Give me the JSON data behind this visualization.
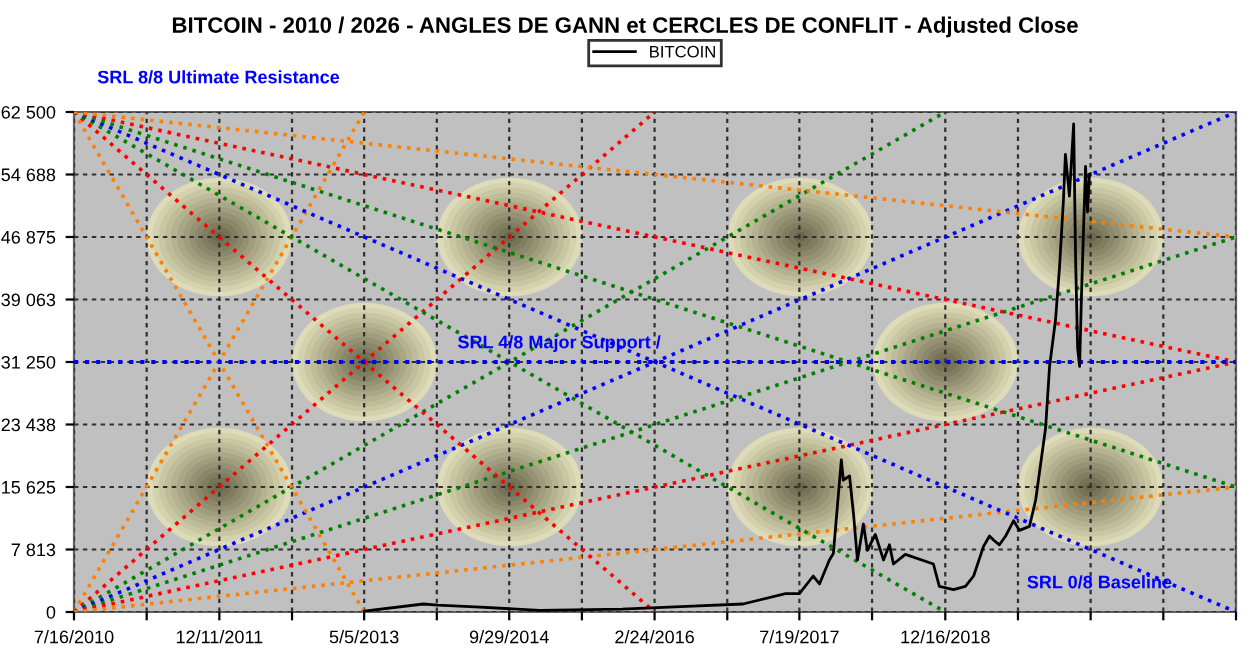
{
  "chart_data": {
    "type": "line",
    "title": "BITCOIN - 2010 / 2026 - ANGLES DE GANN et CERCLES DE CONFLIT - Adjusted Close",
    "xlim": [
      "2010-07-16",
      "2021-10-07"
    ],
    "xticks": [
      {
        "value": "2010-07-16",
        "label": "7/16/2010"
      },
      {
        "value": "2011-03-29T12:00",
        "label": null
      },
      {
        "value": "2011-12-11",
        "label": "12/11/2011"
      },
      {
        "value": "2012-08-23T12:00",
        "label": null
      },
      {
        "value": "2013-05-05",
        "label": "5/5/2013"
      },
      {
        "value": "2014-01-16T12:00",
        "label": null
      },
      {
        "value": "2014-09-29",
        "label": "9/29/2014"
      },
      {
        "value": "2015-06-12T12:00",
        "label": null
      },
      {
        "value": "2016-02-24",
        "label": "2/24/2016"
      },
      {
        "value": "2016-11-06T12:00",
        "label": null
      },
      {
        "value": "2017-07-19",
        "label": "7/19/2017"
      },
      {
        "value": "2018-04-01T12:00",
        "label": null
      },
      {
        "value": "2018-12-16",
        "label": "12/16/2018"
      },
      {
        "value": "2019-08-29T12:00",
        "label": null
      },
      {
        "value": "2020-05-12",
        "label": null
      },
      {
        "value": "2021-01-23T12:00",
        "label": null
      },
      {
        "value": "2021-10-07",
        "label": null
      }
    ],
    "ylim": [
      0,
      62500
    ],
    "yticks": [
      0,
      {
        "value": 7812.5,
        "label": "7 813"
      },
      {
        "value": 15625,
        "label": "15 625"
      },
      {
        "value": 23437.5,
        "label": "23 438"
      },
      {
        "value": 31250,
        "label": "31 250"
      },
      {
        "value": 39062.5,
        "label": "39 063"
      },
      {
        "value": 46875,
        "label": "46 875"
      },
      {
        "value": 54687.5,
        "label": "54 688"
      },
      {
        "value": 62500,
        "label": "62 500"
      }
    ],
    "grid": true,
    "legend": "top",
    "annotations": [
      "SRL 8/8 Ultimate Resistance",
      "SRL 0/8 Baseline"
    ],
    "ref_lines": [
      {
        "axis": "y",
        "value": 31250,
        "label": "SRL 4/8 Major Support /",
        "color": "#0000ff",
        "line_style": "dotted"
      }
    ],
    "series": [
      {
        "name": "BITCOIN",
        "color": "#000000",
        "line_style": "solid",
        "x": [
          "2013-05-05",
          "2013-11-30",
          "2014-01-20",
          "2014-06-01",
          "2015-01-15",
          "2015-11-01",
          "2016-06-15",
          "2017-01-01",
          "2017-05-31",
          "2017-07-19",
          "2017-09-06",
          "2017-09-28",
          "2017-11-02",
          "2017-11-16",
          "2017-12-14",
          "2017-12-21",
          "2018-01-12",
          "2018-01-26",
          "2018-02-09",
          "2018-03-02",
          "2018-03-16",
          "2018-04-13",
          "2018-05-12",
          "2018-06-02",
          "2018-06-16",
          "2018-07-28",
          "2018-11-04",
          "2018-11-25",
          "2019-01-14",
          "2019-02-25",
          "2019-03-26",
          "2019-04-30",
          "2019-05-21",
          "2019-06-04",
          "2019-06-25",
          "2019-07-17",
          "2019-08-14",
          "2019-09-04",
          "2019-10-09",
          "2019-10-31",
          "2019-12-05",
          "2019-12-19",
          "2020-01-09",
          "2020-01-23",
          "2020-02-06",
          "2020-02-13",
          "2020-02-27",
          "2020-03-13",
          "2020-03-20",
          "2020-03-27",
          "2020-04-03",
          "2020-04-10",
          "2020-04-24",
          "2020-05-01",
          "2020-05-08"
        ],
        "values": [
          110,
          1000,
          850,
          650,
          200,
          350,
          700,
          1000,
          2300,
          2300,
          4500,
          3500,
          6500,
          7300,
          19000,
          16500,
          17000,
          12300,
          6500,
          11000,
          7700,
          9700,
          6500,
          8400,
          6000,
          7200,
          6000,
          3200,
          2800,
          3200,
          4500,
          8200,
          9500,
          9000,
          8400,
          9500,
          11400,
          10200,
          10700,
          14000,
          23000,
          30700,
          36500,
          43000,
          51500,
          57200,
          52000,
          61000,
          44000,
          33000,
          30700,
          40000,
          55700,
          50000,
          54700
        ]
      },
      {
        "color": "#ff8000",
        "line_style": "dotted",
        "x": [
          "2010-07-16",
          "2013-05-05"
        ],
        "values": [
          0,
          62500
        ]
      },
      {
        "color": "#ff0000",
        "line_style": "dotted",
        "x": [
          "2010-07-16",
          "2016-02-24"
        ],
        "values": [
          0,
          62500
        ]
      },
      {
        "color": "#008000",
        "line_style": "dotted",
        "x": [
          "2010-07-16",
          "2018-12-16"
        ],
        "values": [
          0,
          62500
        ]
      },
      {
        "color": "#0000ff",
        "line_style": "dotted",
        "x": [
          "2010-07-16",
          "2021-10-07"
        ],
        "values": [
          0,
          62500
        ]
      },
      {
        "color": "#008000",
        "line_style": "dotted",
        "x": [
          "2010-07-16",
          "2021-10-07"
        ],
        "values": [
          0,
          46875
        ]
      },
      {
        "color": "#ff0000",
        "line_style": "dotted",
        "x": [
          "2010-07-16",
          "2021-10-07"
        ],
        "values": [
          0,
          31250
        ]
      },
      {
        "color": "#ff8000",
        "line_style": "dotted",
        "x": [
          "2010-07-16",
          "2021-10-07"
        ],
        "values": [
          0,
          15625
        ]
      },
      {
        "color": "#ff8000",
        "line_style": "dotted",
        "x": [
          "2010-07-16",
          "2013-05-05"
        ],
        "values": [
          62500,
          0
        ]
      },
      {
        "color": "#ff0000",
        "line_style": "dotted",
        "x": [
          "2010-07-16",
          "2016-02-24"
        ],
        "values": [
          62500,
          0
        ]
      },
      {
        "color": "#008000",
        "line_style": "dotted",
        "x": [
          "2010-07-16",
          "2018-12-16"
        ],
        "values": [
          62500,
          0
        ]
      },
      {
        "color": "#0000ff",
        "line_style": "dotted",
        "x": [
          "2010-07-16",
          "2021-10-07"
        ],
        "values": [
          62500,
          0
        ]
      },
      {
        "color": "#008000",
        "line_style": "dotted",
        "x": [
          "2010-07-16",
          "2021-10-07"
        ],
        "values": [
          62500,
          15625
        ]
      },
      {
        "color": "#ff0000",
        "line_style": "dotted",
        "x": [
          "2010-07-16",
          "2021-10-07"
        ],
        "values": [
          62500,
          31250
        ]
      },
      {
        "color": "#ff8000",
        "line_style": "dotted",
        "x": [
          "2010-07-16",
          "2021-10-07"
        ],
        "values": [
          62500,
          46875
        ]
      }
    ]
  }
}
